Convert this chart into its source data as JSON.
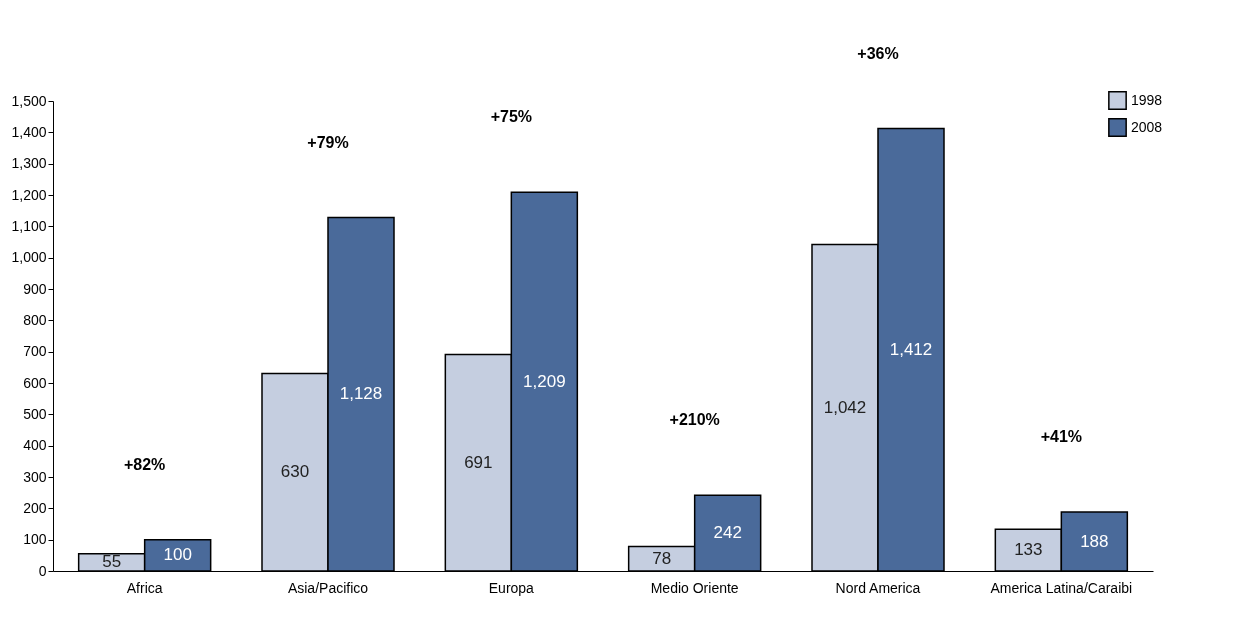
{
  "chart_data": {
    "type": "bar",
    "categories": [
      "Africa",
      "Asia/Pacifico",
      "Europa",
      "Medio Oriente",
      "Nord America",
      "America Latina/Caraibi"
    ],
    "series": [
      {
        "name": "1998",
        "color": "#c5cee0",
        "values": [
          55,
          630,
          691,
          78,
          1042,
          133
        ],
        "value_labels": [
          "55",
          "630",
          "691",
          "78",
          "1,042",
          "133"
        ]
      },
      {
        "name": "2008",
        "color": "#4a6a9a",
        "values": [
          100,
          1128,
          1209,
          242,
          1412,
          188
        ],
        "value_labels": [
          "100",
          "1,128",
          "1,209",
          "242",
          "1,412",
          "188"
        ]
      }
    ],
    "ylim": [
      0,
      1500
    ],
    "yticks": [
      0,
      100,
      200,
      300,
      400,
      500,
      600,
      700,
      800,
      900,
      {
        "value": 1000,
        "label": "1,000"
      },
      {
        "value": 1100,
        "label": "1,100"
      },
      {
        "value": 1200,
        "label": "1,200"
      },
      {
        "value": 1300,
        "label": "1,300"
      },
      {
        "value": 1400,
        "label": "1,400"
      },
      {
        "value": 1500,
        "label": "1,500"
      }
    ],
    "annotations": [
      "+82%",
      "+79%",
      "+75%",
      "+210%",
      "+36%",
      "+41%"
    ],
    "grid": false,
    "legend": "top right"
  }
}
